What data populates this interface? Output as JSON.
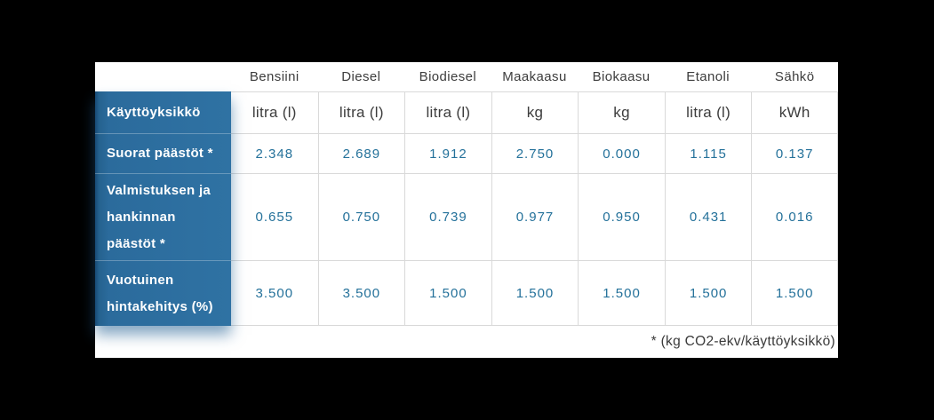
{
  "table": {
    "col_headers": [
      "Bensiini",
      "Diesel",
      "Biodiesel",
      "Maakaasu",
      "Biokaasu",
      "Etanoli",
      "Sähkö"
    ],
    "rows": [
      {
        "label": "Käyttöyksikkö",
        "values": [
          "litra (l)",
          "litra (l)",
          "litra (l)",
          "kg",
          "kg",
          "litra (l)",
          "kWh"
        ]
      },
      {
        "label": "Suorat päästöt *",
        "values": [
          "2.348",
          "2.689",
          "1.912",
          "2.750",
          "0.000",
          "1.115",
          "0.137"
        ]
      },
      {
        "label": "Valmistuksen ja hankinnan päästöt *",
        "values": [
          "0.655",
          "0.750",
          "0.739",
          "0.977",
          "0.950",
          "0.431",
          "0.016"
        ]
      },
      {
        "label": "Vuotuinen hintakehitys (%)",
        "values": [
          "3.500",
          "3.500",
          "1.500",
          "1.500",
          "1.500",
          "1.500",
          "1.500"
        ]
      }
    ],
    "footnote": "* (kg CO2-ekv/käyttöyksikkö)"
  },
  "colors": {
    "accent_blue": "#2b6b9c",
    "value_text": "#24719a",
    "header_text": "#3d3d3d",
    "grid_border": "#d9d9d9",
    "page_background": "#000000",
    "card_background": "#ffffff"
  }
}
